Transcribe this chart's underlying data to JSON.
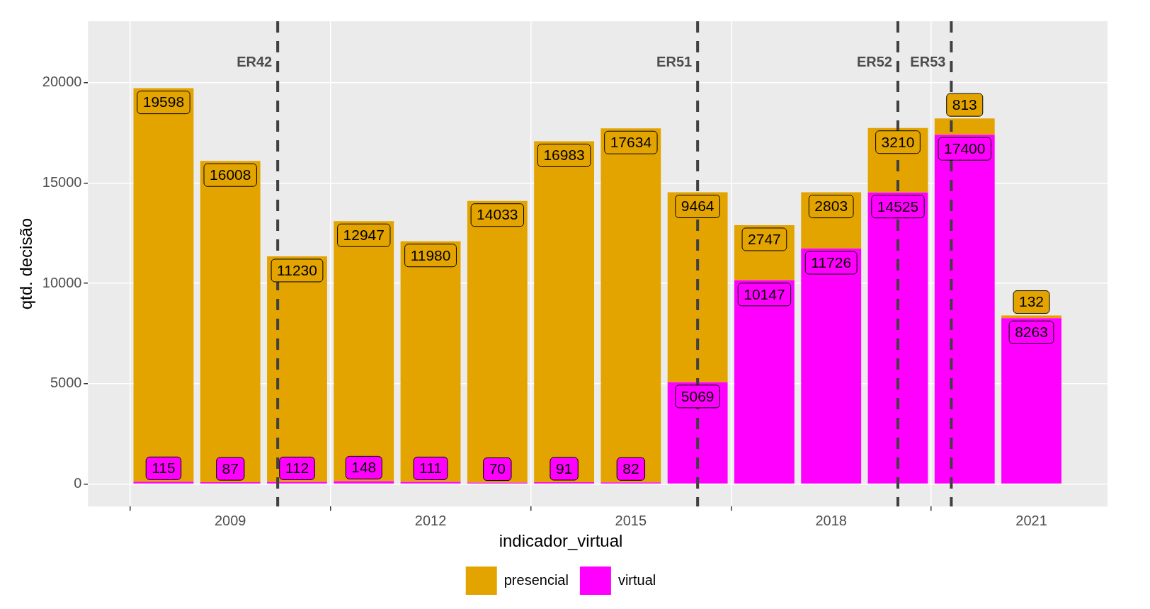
{
  "chart_data": {
    "type": "bar",
    "stacked": true,
    "ylabel": "qtd. decisão",
    "legend_title": "indicador_virtual",
    "legend": "bottom",
    "grid": true,
    "data_labels": true,
    "x": [
      2008,
      2009,
      2010,
      2011,
      2012,
      2013,
      2014,
      2015,
      2016,
      2017,
      2018,
      2019,
      2020,
      2021
    ],
    "xlim": [
      2006.87,
      2022.14
    ],
    "xticks": [
      2009,
      2012,
      2015,
      2018,
      2021
    ],
    "ylim": [
      -1115,
      23050
    ],
    "yticks": [
      0,
      5000,
      10000,
      15000,
      20000
    ],
    "series": [
      {
        "name": "virtual",
        "color": "#ff00ff",
        "values": [
          115,
          87,
          112,
          148,
          111,
          70,
          91,
          82,
          5069,
          10147,
          11726,
          14525,
          17400,
          8263
        ]
      },
      {
        "name": "presencial",
        "color": "#e3a400",
        "values": [
          19598,
          16008,
          11230,
          12947,
          11980,
          14033,
          16983,
          17634,
          9464,
          2747,
          2803,
          3210,
          813,
          132
        ]
      }
    ],
    "ref_lines": [
      {
        "axis": "x",
        "value": 2009.71,
        "label": "ER42",
        "color": "#404040",
        "line_style": "dashed"
      },
      {
        "axis": "x",
        "value": 2016.0,
        "label": "ER51",
        "color": "#404040",
        "line_style": "dashed"
      },
      {
        "axis": "x",
        "value": 2019.0,
        "label": "ER52",
        "color": "#404040",
        "line_style": "dashed"
      },
      {
        "axis": "x",
        "value": 2019.8,
        "label": "ER53",
        "color": "#404040",
        "line_style": "dashed"
      }
    ]
  }
}
